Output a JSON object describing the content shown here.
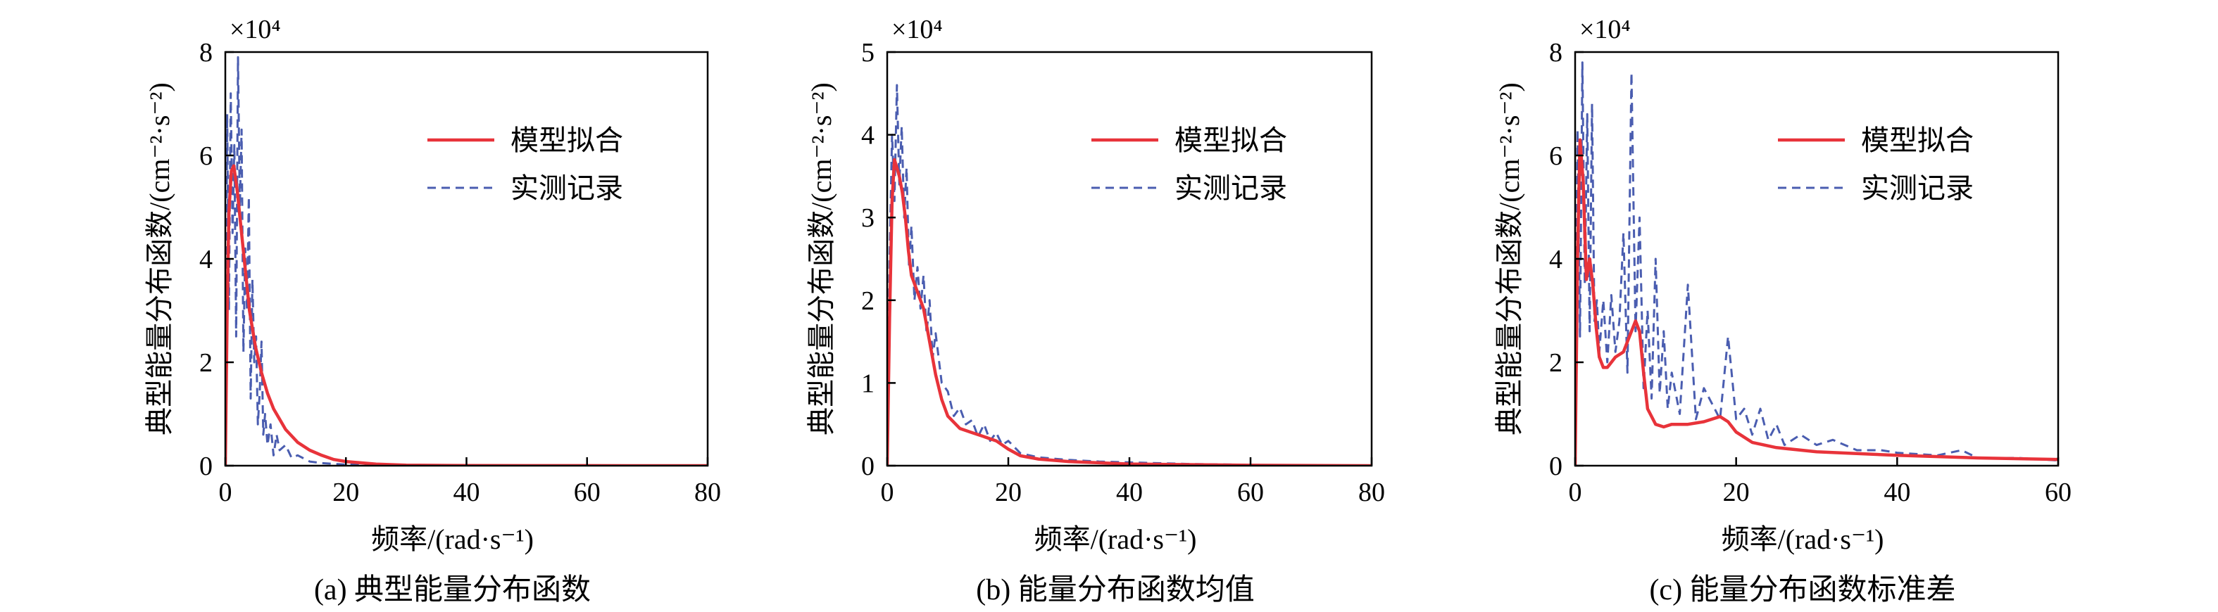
{
  "chart_data": [
    {
      "type": "line",
      "caption": "(a) 典型能量分布函数",
      "xlabel": "频率/(rad·s⁻¹)",
      "ylabel": "典型能量分布函数/(cm⁻²·s⁻²)",
      "multiplier": "×10⁴",
      "xlim": [
        0,
        80
      ],
      "ylim": [
        0,
        8
      ],
      "xticks": [
        "0",
        "20",
        "40",
        "60",
        "80"
      ],
      "yticks": [
        "0",
        "2",
        "4",
        "6",
        "8"
      ],
      "legend_position": "top-right",
      "series": [
        {
          "name": "模型拟合",
          "style": "solid",
          "color": "#e8333a",
          "x": [
            0,
            0.3,
            0.6,
            1.0,
            1.4,
            2.0,
            2.6,
            3.3,
            4.0,
            5.0,
            6.0,
            7.0,
            8.0,
            9.0,
            10,
            12,
            14,
            16,
            18,
            20,
            25,
            30,
            40,
            50,
            60,
            70,
            80
          ],
          "y": [
            0,
            3.0,
            4.9,
            5.7,
            5.8,
            5.3,
            4.6,
            3.8,
            3.0,
            2.3,
            1.8,
            1.4,
            1.1,
            0.9,
            0.7,
            0.45,
            0.3,
            0.2,
            0.12,
            0.08,
            0.03,
            0.01,
            0.004,
            0.002,
            0.001,
            0.0005,
            0
          ]
        },
        {
          "name": "实测记录",
          "style": "dashed",
          "color": "#4a5db0",
          "x": [
            0,
            0.3,
            0.6,
            0.9,
            1.2,
            1.5,
            1.8,
            2.1,
            2.4,
            2.7,
            3.0,
            3.3,
            3.6,
            3.9,
            4.2,
            4.5,
            4.8,
            5.1,
            5.4,
            5.7,
            6.0,
            6.3,
            6.6,
            7.0,
            7.5,
            8.0,
            8.5,
            9.0,
            10,
            11,
            12,
            14,
            16,
            20,
            30,
            40,
            60,
            80
          ],
          "y": [
            0,
            6.8,
            3.0,
            7.2,
            4.5,
            6.2,
            2.5,
            7.9,
            5.0,
            6.5,
            2.2,
            4.2,
            3.0,
            5.2,
            1.3,
            3.6,
            2.0,
            2.5,
            0.8,
            1.4,
            2.4,
            0.6,
            1.0,
            0.4,
            0.8,
            0.2,
            0.6,
            0.3,
            0.4,
            0.15,
            0.2,
            0.08,
            0.05,
            0.02,
            0.01,
            0.005,
            0.002,
            0
          ]
        }
      ]
    },
    {
      "type": "line",
      "caption": "(b) 能量分布函数均值",
      "xlabel": "频率/(rad·s⁻¹)",
      "ylabel": "典型能量分布函数/(cm⁻²·s⁻²)",
      "multiplier": "×10⁴",
      "xlim": [
        0,
        80
      ],
      "ylim": [
        0,
        5
      ],
      "xticks": [
        "0",
        "20",
        "40",
        "60",
        "80"
      ],
      "yticks": [
        "0",
        "1",
        "2",
        "3",
        "4",
        "5"
      ],
      "legend_position": "top-right",
      "series": [
        {
          "name": "模型拟合",
          "style": "solid",
          "color": "#e8333a",
          "x": [
            0,
            0.4,
            0.8,
            1.2,
            1.6,
            2.0,
            2.5,
            3.0,
            3.5,
            4.0,
            5.0,
            6.0,
            7.0,
            8.0,
            9.0,
            10,
            12,
            14,
            16,
            18,
            20,
            22,
            25,
            30,
            40,
            60,
            80
          ],
          "y": [
            0,
            1.8,
            3.2,
            3.7,
            3.6,
            3.5,
            3.3,
            3.0,
            2.6,
            2.3,
            2.1,
            1.9,
            1.5,
            1.1,
            0.8,
            0.6,
            0.45,
            0.4,
            0.35,
            0.3,
            0.2,
            0.12,
            0.08,
            0.05,
            0.02,
            0.005,
            0
          ]
        },
        {
          "name": "实测记录",
          "style": "dashed",
          "color": "#4a5db0",
          "x": [
            0,
            0.4,
            0.8,
            1.2,
            1.6,
            2.0,
            2.4,
            2.8,
            3.2,
            3.6,
            4.0,
            4.5,
            5.0,
            5.5,
            6.0,
            6.5,
            7.0,
            7.5,
            8.0,
            9.0,
            10,
            11,
            12,
            13,
            14,
            15,
            16,
            17,
            18,
            19,
            20,
            22,
            25,
            30,
            35,
            40,
            50,
            60,
            80
          ],
          "y": [
            0,
            2.5,
            4.0,
            3.2,
            4.6,
            3.4,
            4.1,
            3.0,
            3.6,
            2.4,
            2.9,
            2.0,
            2.4,
            1.9,
            2.3,
            1.6,
            2.0,
            1.3,
            1.6,
            1.0,
            0.9,
            0.6,
            0.7,
            0.5,
            0.55,
            0.35,
            0.5,
            0.3,
            0.4,
            0.25,
            0.3,
            0.15,
            0.1,
            0.07,
            0.05,
            0.04,
            0.02,
            0.01,
            0
          ]
        }
      ]
    },
    {
      "type": "line",
      "caption": "(c) 能量分布函数标准差",
      "xlabel": "频率/(rad·s⁻¹)",
      "ylabel": "典型能量分布函数/(cm⁻²·s⁻²)",
      "multiplier": "×10⁴",
      "xlim": [
        0,
        60
      ],
      "ylim": [
        0,
        8
      ],
      "xticks": [
        "0",
        "20",
        "40",
        "60"
      ],
      "yticks": [
        "0",
        "2",
        "4",
        "6",
        "8"
      ],
      "legend_position": "top-right",
      "series": [
        {
          "name": "模型拟合",
          "style": "solid",
          "color": "#e8333a",
          "x": [
            0,
            0.3,
            0.6,
            1.0,
            1.4,
            1.8,
            2.2,
            2.6,
            3.0,
            3.5,
            4.0,
            5.0,
            6.0,
            7.0,
            7.5,
            8.0,
            8.5,
            9.0,
            10,
            11,
            12,
            14,
            16,
            18,
            19,
            20,
            22,
            25,
            30,
            40,
            50,
            60
          ],
          "y": [
            0,
            4.0,
            6.3,
            5.5,
            3.6,
            4.0,
            3.5,
            2.7,
            2.1,
            1.9,
            1.9,
            2.1,
            2.2,
            2.6,
            2.8,
            2.6,
            1.8,
            1.1,
            0.8,
            0.75,
            0.8,
            0.8,
            0.85,
            0.95,
            0.85,
            0.65,
            0.45,
            0.35,
            0.27,
            0.2,
            0.15,
            0.12
          ]
        },
        {
          "name": "实测记录",
          "style": "dashed",
          "color": "#4a5db0",
          "x": [
            0,
            0.3,
            0.6,
            0.9,
            1.2,
            1.5,
            1.8,
            2.1,
            2.4,
            2.7,
            3.0,
            3.5,
            4.0,
            4.5,
            5.0,
            5.5,
            6.0,
            6.5,
            7.0,
            7.5,
            8.0,
            8.5,
            9.0,
            9.5,
            10,
            10.5,
            11,
            11.5,
            12,
            13,
            14,
            15,
            16,
            17,
            18,
            19,
            20,
            21,
            22,
            23,
            24,
            25,
            26,
            28,
            30,
            32,
            35,
            38,
            40,
            45,
            48,
            50,
            55,
            60
          ],
          "y": [
            0,
            6.5,
            2.5,
            7.8,
            3.5,
            6.8,
            2.6,
            7.0,
            2.8,
            3.2,
            2.2,
            3.2,
            2.0,
            3.3,
            2.2,
            2.8,
            4.5,
            1.8,
            7.6,
            2.6,
            4.8,
            1.5,
            3.0,
            1.3,
            4.0,
            1.4,
            2.6,
            1.1,
            1.8,
            1.0,
            3.5,
            0.9,
            1.5,
            1.2,
            0.9,
            2.5,
            0.9,
            1.1,
            0.6,
            1.1,
            0.5,
            0.8,
            0.4,
            0.6,
            0.4,
            0.5,
            0.3,
            0.3,
            0.25,
            0.2,
            0.3,
            0.15,
            0.15,
            0.1
          ]
        }
      ]
    }
  ]
}
